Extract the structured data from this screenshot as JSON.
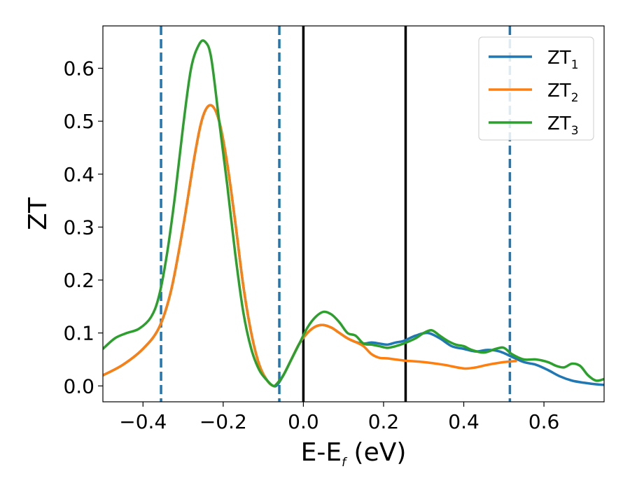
{
  "chart_data": {
    "type": "line",
    "xlabel_main": "E-E",
    "xlabel_sub": "f",
    "xlabel_unit": " (eV)",
    "ylabel": "ZT",
    "xlim": [
      -0.5,
      0.75
    ],
    "ylim": [
      -0.03,
      0.68
    ],
    "xticks": [
      -0.4,
      -0.2,
      0.0,
      0.2,
      0.4,
      0.6
    ],
    "xtick_labels": [
      "−0.4",
      "−0.2",
      "0.0",
      "0.2",
      "0.4",
      "0.6"
    ],
    "yticks": [
      0.0,
      0.1,
      0.2,
      0.3,
      0.4,
      0.5,
      0.6
    ],
    "ytick_labels": [
      "0.0",
      "0.1",
      "0.2",
      "0.3",
      "0.4",
      "0.5",
      "0.6"
    ],
    "grid": false,
    "legend_position": "top-right",
    "series": [
      {
        "name": "ZT",
        "sub": "1",
        "color": "#1f77b4",
        "x": [
          -0.5,
          -0.45,
          -0.4,
          -0.36,
          -0.33,
          -0.3,
          -0.27,
          -0.25,
          -0.23,
          -0.21,
          -0.19,
          -0.17,
          -0.15,
          -0.13,
          -0.11,
          -0.09,
          -0.075,
          -0.065,
          -0.05,
          -0.03,
          -0.01,
          0.01,
          0.03,
          0.05,
          0.07,
          0.09,
          0.11,
          0.13,
          0.15,
          0.17,
          0.19,
          0.21,
          0.23,
          0.25,
          0.28,
          0.31,
          0.34,
          0.37,
          0.4,
          0.43,
          0.46,
          0.49,
          0.52,
          0.55,
          0.58,
          0.61,
          0.64,
          0.67,
          0.7,
          0.73,
          0.75
        ],
        "y": [
          0.02,
          0.04,
          0.07,
          0.11,
          0.18,
          0.3,
          0.44,
          0.51,
          0.53,
          0.5,
          0.42,
          0.31,
          0.19,
          0.1,
          0.04,
          0.01,
          0.0,
          0.002,
          0.02,
          0.05,
          0.08,
          0.1,
          0.112,
          0.115,
          0.11,
          0.1,
          0.09,
          0.083,
          0.08,
          0.082,
          0.08,
          0.078,
          0.082,
          0.085,
          0.095,
          0.1,
          0.09,
          0.075,
          0.07,
          0.065,
          0.068,
          0.065,
          0.055,
          0.045,
          0.04,
          0.03,
          0.018,
          0.01,
          0.006,
          0.003,
          0.002
        ]
      },
      {
        "name": "ZT",
        "sub": "2",
        "color": "#ff7f0e",
        "x": [
          -0.5,
          -0.45,
          -0.4,
          -0.36,
          -0.33,
          -0.3,
          -0.27,
          -0.25,
          -0.23,
          -0.21,
          -0.19,
          -0.17,
          -0.15,
          -0.13,
          -0.11,
          -0.09,
          -0.075,
          -0.065,
          -0.05,
          -0.03,
          -0.01,
          0.01,
          0.03,
          0.05,
          0.07,
          0.09,
          0.11,
          0.13,
          0.15,
          0.17,
          0.19,
          0.21,
          0.25,
          0.3,
          0.35,
          0.4,
          0.43,
          0.46,
          0.5,
          0.53
        ],
        "y": [
          0.02,
          0.04,
          0.07,
          0.11,
          0.18,
          0.3,
          0.44,
          0.51,
          0.53,
          0.5,
          0.42,
          0.31,
          0.19,
          0.1,
          0.04,
          0.01,
          0.0,
          0.005,
          0.02,
          0.05,
          0.08,
          0.1,
          0.112,
          0.115,
          0.11,
          0.1,
          0.09,
          0.083,
          0.075,
          0.06,
          0.053,
          0.052,
          0.048,
          0.045,
          0.04,
          0.033,
          0.035,
          0.04,
          0.045,
          0.047
        ]
      },
      {
        "name": "ZT",
        "sub": "3",
        "color": "#2ca02c",
        "x": [
          -0.5,
          -0.47,
          -0.44,
          -0.41,
          -0.38,
          -0.36,
          -0.34,
          -0.32,
          -0.3,
          -0.28,
          -0.26,
          -0.245,
          -0.23,
          -0.21,
          -0.19,
          -0.17,
          -0.15,
          -0.13,
          -0.11,
          -0.09,
          -0.075,
          -0.065,
          -0.05,
          -0.03,
          -0.01,
          0.01,
          0.03,
          0.05,
          0.07,
          0.09,
          0.11,
          0.13,
          0.15,
          0.17,
          0.19,
          0.21,
          0.23,
          0.25,
          0.28,
          0.3,
          0.32,
          0.34,
          0.36,
          0.38,
          0.4,
          0.42,
          0.45,
          0.48,
          0.5,
          0.52,
          0.55,
          0.58,
          0.61,
          0.63,
          0.65,
          0.67,
          0.69,
          0.71,
          0.73,
          0.75
        ],
        "y": [
          0.07,
          0.09,
          0.1,
          0.108,
          0.13,
          0.17,
          0.25,
          0.36,
          0.49,
          0.6,
          0.645,
          0.65,
          0.62,
          0.5,
          0.38,
          0.25,
          0.14,
          0.07,
          0.03,
          0.01,
          0.0,
          0.005,
          0.02,
          0.05,
          0.08,
          0.11,
          0.13,
          0.14,
          0.135,
          0.12,
          0.1,
          0.095,
          0.08,
          0.078,
          0.075,
          0.072,
          0.075,
          0.08,
          0.09,
          0.1,
          0.105,
          0.095,
          0.085,
          0.078,
          0.075,
          0.068,
          0.063,
          0.07,
          0.072,
          0.06,
          0.05,
          0.05,
          0.045,
          0.038,
          0.035,
          0.042,
          0.038,
          0.02,
          0.01,
          0.013
        ]
      }
    ],
    "vlines": [
      {
        "x": -0.355,
        "style": "dashed",
        "color": "#1f77b4"
      },
      {
        "x": -0.06,
        "style": "dashed",
        "color": "#1f77b4"
      },
      {
        "x": 0.515,
        "style": "dashed",
        "color": "#1f77b4"
      },
      {
        "x": 0.0,
        "style": "solid",
        "color": "#000000"
      },
      {
        "x": 0.255,
        "style": "solid",
        "color": "#000000"
      }
    ]
  }
}
